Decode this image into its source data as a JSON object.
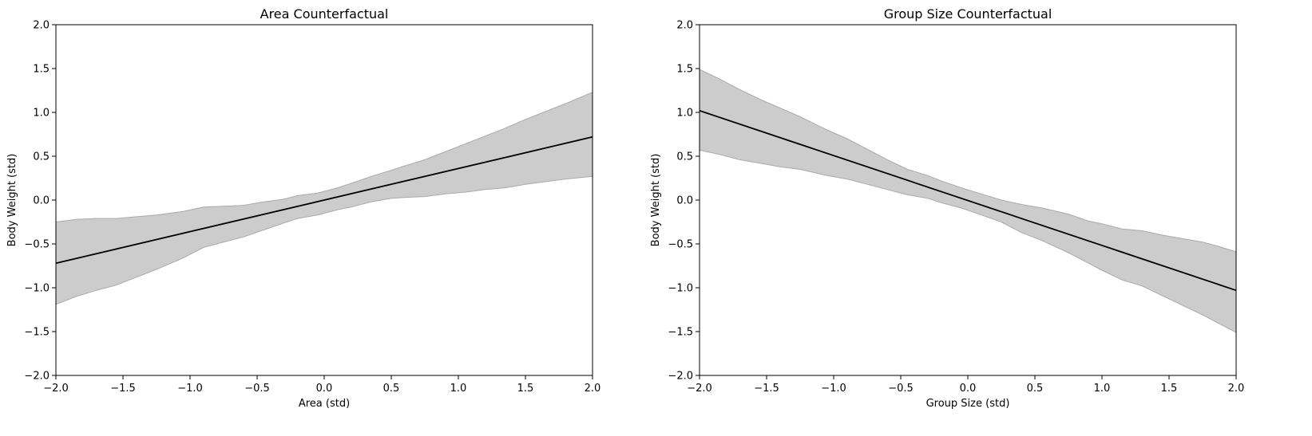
{
  "chart_data": [
    {
      "type": "area",
      "title": "Area Counterfactual",
      "xlabel": "Area (std)",
      "ylabel": "Body Weight (std)",
      "xlim": [
        -2.0,
        2.0
      ],
      "ylim": [
        -2.0,
        2.0
      ],
      "xticks": [
        "−2.0",
        "−1.5",
        "−1.0",
        "−0.5",
        "0.0",
        "0.5",
        "1.0",
        "1.5",
        "2.0"
      ],
      "yticks": [
        "−2.0",
        "−1.5",
        "−1.0",
        "−0.5",
        "0.0",
        "0.5",
        "1.0",
        "1.5",
        "2.0"
      ],
      "line": {
        "x": [
          -2.0,
          2.0
        ],
        "y": [
          -0.72,
          0.72
        ],
        "color": "#000000"
      },
      "band": {
        "x": [
          -2.0,
          -1.85,
          -1.7,
          -1.55,
          -1.4,
          -1.25,
          -1.05,
          -0.9,
          -0.75,
          -0.6,
          -0.45,
          -0.3,
          -0.2,
          -0.05,
          0.1,
          0.2,
          0.35,
          0.5,
          0.6,
          0.75,
          0.9,
          1.05,
          1.2,
          1.35,
          1.5,
          1.65,
          1.8,
          2.0
        ],
        "upper": [
          -0.25,
          -0.22,
          -0.21,
          -0.21,
          -0.19,
          -0.17,
          -0.13,
          -0.08,
          -0.07,
          -0.06,
          -0.02,
          0.01,
          0.05,
          0.08,
          0.14,
          0.19,
          0.27,
          0.34,
          0.39,
          0.46,
          0.55,
          0.64,
          0.73,
          0.82,
          0.92,
          1.01,
          1.1,
          1.23
        ],
        "lower": [
          -1.19,
          -1.1,
          -1.03,
          -0.97,
          -0.88,
          -0.79,
          -0.66,
          -0.54,
          -0.48,
          -0.42,
          -0.34,
          -0.26,
          -0.21,
          -0.17,
          -0.11,
          -0.08,
          -0.02,
          0.02,
          0.03,
          0.04,
          0.07,
          0.09,
          0.12,
          0.14,
          0.18,
          0.21,
          0.24,
          0.27
        ],
        "color": "#cccccc"
      },
      "grid": false
    },
    {
      "type": "area",
      "title": "Group Size Counterfactual",
      "xlabel": "Group Size (std)",
      "ylabel": "Body Weight (std)",
      "xlim": [
        -2.0,
        2.0
      ],
      "ylim": [
        -2.0,
        2.0
      ],
      "xticks": [
        "−2.0",
        "−1.5",
        "−1.0",
        "−0.5",
        "0.0",
        "0.5",
        "1.0",
        "1.5",
        "2.0"
      ],
      "yticks": [
        "−2.0",
        "−1.5",
        "−1.0",
        "−0.5",
        "0.0",
        "0.5",
        "1.0",
        "1.5",
        "2.0"
      ],
      "line": {
        "x": [
          -2.0,
          2.0
        ],
        "y": [
          1.02,
          -1.03
        ],
        "color": "#000000"
      },
      "band": {
        "x": [
          -2.0,
          -1.85,
          -1.7,
          -1.55,
          -1.4,
          -1.25,
          -1.05,
          -0.9,
          -0.75,
          -0.6,
          -0.45,
          -0.3,
          -0.2,
          -0.05,
          0.1,
          0.25,
          0.4,
          0.55,
          0.75,
          0.9,
          1.0,
          1.15,
          1.3,
          1.45,
          1.6,
          1.75,
          1.85,
          2.0
        ],
        "upper": [
          1.49,
          1.38,
          1.26,
          1.15,
          1.05,
          0.95,
          0.8,
          0.7,
          0.58,
          0.46,
          0.35,
          0.28,
          0.22,
          0.14,
          0.07,
          0.0,
          -0.05,
          -0.09,
          -0.16,
          -0.24,
          -0.27,
          -0.33,
          -0.35,
          -0.4,
          -0.44,
          -0.48,
          -0.52,
          -0.59
        ],
        "lower": [
          0.57,
          0.52,
          0.46,
          0.42,
          0.38,
          0.35,
          0.28,
          0.24,
          0.18,
          0.12,
          0.06,
          0.02,
          -0.03,
          -0.09,
          -0.17,
          -0.25,
          -0.37,
          -0.46,
          -0.6,
          -0.72,
          -0.8,
          -0.91,
          -0.98,
          -1.09,
          -1.2,
          -1.31,
          -1.39,
          -1.51
        ],
        "color": "#cccccc"
      },
      "grid": false
    }
  ]
}
